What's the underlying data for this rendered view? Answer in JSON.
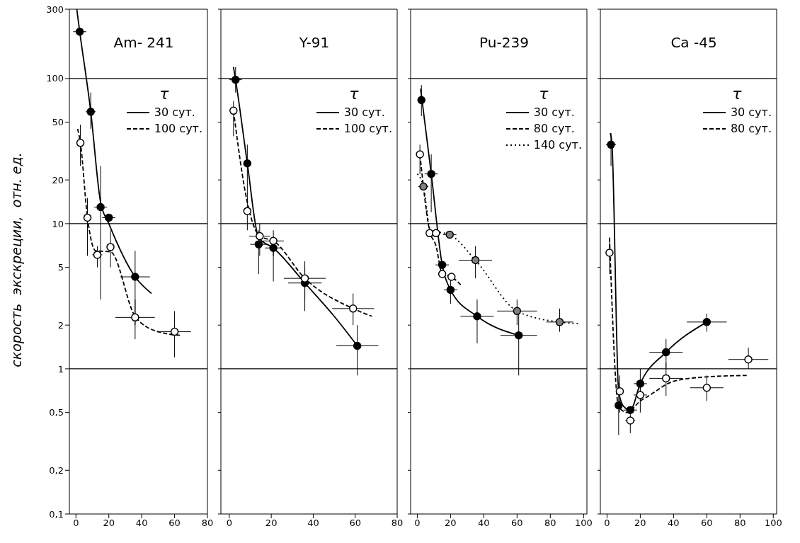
{
  "chart_data": [
    {
      "type": "scatter",
      "title": "Am- 241",
      "ylabel": "скорость  экскреции,  отн. ед.",
      "legend_title": "τ",
      "legend": "top right",
      "log": true,
      "xlim": [
        -4,
        80
      ],
      "xticks": [
        0,
        20,
        40,
        60,
        80
      ],
      "ylim": [
        0.1,
        300
      ],
      "yticks": [
        {
          "value": 0.1,
          "label": "0,1"
        },
        {
          "value": 0.2,
          "label": "0,2"
        },
        {
          "value": 0.5,
          "label": "0,5"
        },
        1,
        2,
        5,
        10,
        20,
        50,
        100,
        300
      ],
      "ref_lines": [
        {
          "axis": "y",
          "value": 1
        },
        {
          "axis": "y",
          "value": 10
        },
        {
          "axis": "y",
          "value": 100
        }
      ],
      "series": [
        {
          "type": "line",
          "name": "30 сут.",
          "color": "#000000",
          "line_style": "solid",
          "marker": "none",
          "x": [
            0.5,
            2.3,
            9,
            15,
            20,
            36,
            46
          ],
          "values": [
            300,
            210,
            59,
            14,
            10,
            4.3,
            3.3
          ]
        },
        {
          "type": "line",
          "name": "100 сут.",
          "color": "#000000",
          "line_style": "dashed",
          "marker": "none",
          "x": [
            1,
            2.7,
            7,
            12,
            21,
            36,
            50,
            64
          ],
          "values": [
            45,
            36,
            11,
            6.5,
            6.4,
            2.3,
            1.8,
            1.7
          ]
        },
        {
          "color": "#000000",
          "marker": "circle",
          "x": [
            2.3,
            9,
            15,
            20,
            36
          ],
          "values": [
            210,
            59,
            13,
            11,
            4.3
          ],
          "xerrors": [
            4,
            3,
            4,
            4,
            9
          ],
          "errors": [
            null,
            [
              45,
              80
            ],
            [
              3,
              25
            ],
            null,
            [
              2,
              6.5
            ]
          ]
        },
        {
          "color": "#ffffff",
          "marker": "circle",
          "x": [
            2.7,
            7,
            13,
            21,
            36,
            60
          ],
          "values": [
            36,
            11,
            6.1,
            6.9,
            2.26,
            1.8
          ],
          "xerrors": [
            null,
            null,
            3,
            null,
            12,
            10
          ],
          "errors": [
            [
              25,
              48
            ],
            [
              6,
              15
            ],
            [
              5,
              7
            ],
            [
              5,
              9
            ],
            [
              1.6,
              3
            ],
            [
              1.2,
              2.5
            ]
          ]
        }
      ]
    },
    {
      "type": "scatter",
      "title": "Y-91",
      "legend_title": "τ",
      "legend": "top right",
      "log": true,
      "tick_labels": "x",
      "xlim": [
        -4,
        80
      ],
      "xticks": [
        0,
        20,
        40,
        60,
        80
      ],
      "ylim": [
        0.1,
        300
      ],
      "yticks": [
        {
          "value": 0.1,
          "label": null
        },
        {
          "value": 0.2,
          "label": null
        },
        {
          "value": 0.5,
          "label": null
        },
        {
          "value": 1,
          "label": null
        },
        {
          "value": 2,
          "label": null
        },
        {
          "value": 5,
          "label": null
        },
        {
          "value": 10,
          "label": null
        },
        {
          "value": 20,
          "label": null
        },
        {
          "value": 50,
          "label": null
        },
        {
          "value": 100,
          "label": null
        },
        {
          "value": 300,
          "label": null
        }
      ],
      "ref_lines": [
        {
          "axis": "y",
          "value": 1
        },
        {
          "axis": "y",
          "value": 10
        },
        {
          "axis": "y",
          "value": 100
        }
      ],
      "series": [
        {
          "type": "line",
          "name": "30 сут.",
          "color": "#000000",
          "line_style": "solid",
          "marker": "none",
          "x": [
            2,
            3,
            8.6,
            14,
            21,
            36,
            50,
            61
          ],
          "values": [
            120,
            98,
            26,
            8,
            6.8,
            3.9,
            2.3,
            1.44
          ]
        },
        {
          "type": "line",
          "name": "100 сут.",
          "color": "#000000",
          "line_style": "dashed",
          "marker": "none",
          "x": [
            2,
            8.6,
            14.5,
            21,
            36,
            59,
            68
          ],
          "values": [
            60,
            14,
            8.2,
            7.6,
            4.2,
            2.6,
            2.3
          ]
        },
        {
          "color": "#000000",
          "marker": "circle",
          "x": [
            3,
            8.6,
            14,
            21,
            36,
            61
          ],
          "values": [
            98,
            26,
            7.2,
            6.8,
            3.9,
            1.44
          ],
          "xerrors": [
            3,
            null,
            4,
            4,
            8,
            10
          ],
          "errors": [
            [
              80,
              120
            ],
            [
              14,
              35
            ],
            [
              4.5,
              9
            ],
            [
              4,
              8
            ],
            [
              2.5,
              5
            ],
            [
              0.9,
              2
            ]
          ]
        },
        {
          "color": "#ffffff",
          "marker": "circle",
          "x": [
            2,
            8.6,
            14.5,
            21,
            36,
            59
          ],
          "values": [
            60,
            12.2,
            8.2,
            7.6,
            4.2,
            2.6
          ],
          "xerrors": [
            null,
            null,
            5,
            5,
            10,
            10
          ],
          "errors": [
            [
              40,
              70
            ],
            [
              9,
              15
            ],
            [
              6,
              10
            ],
            [
              6,
              9
            ],
            [
              3,
              5.5
            ],
            [
              2,
              3.3
            ]
          ]
        }
      ]
    },
    {
      "type": "scatter",
      "title": "Pu-239",
      "legend_title": "τ",
      "legend": "top right",
      "log": true,
      "tick_labels": "x",
      "xlim": [
        -4,
        102
      ],
      "xticks": [
        0,
        20,
        40,
        60,
        80,
        100
      ],
      "ylim": [
        0.1,
        300
      ],
      "yticks": [
        {
          "value": 0.1,
          "label": null
        },
        {
          "value": 0.2,
          "label": null
        },
        {
          "value": 0.5,
          "label": null
        },
        {
          "value": 1,
          "label": null
        },
        {
          "value": 2,
          "label": null
        },
        {
          "value": 5,
          "label": null
        },
        {
          "value": 10,
          "label": null
        },
        {
          "value": 20,
          "label": null
        },
        {
          "value": 50,
          "label": null
        },
        {
          "value": 100,
          "label": null
        },
        {
          "value": 300,
          "label": null
        }
      ],
      "ref_lines": [
        {
          "axis": "y",
          "value": 1
        },
        {
          "axis": "y",
          "value": 10
        },
        {
          "axis": "y",
          "value": 100
        }
      ],
      "series": [
        {
          "type": "line",
          "name": "30 сут.",
          "color": "#000000",
          "line_style": "solid",
          "marker": "none",
          "x": [
            2,
            8.4,
            15,
            20,
            36,
            61
          ],
          "values": [
            85,
            22,
            5.2,
            3.5,
            2.3,
            1.7
          ]
        },
        {
          "type": "line",
          "name": "80 сут.",
          "color": "#000000",
          "line_style": "dashed",
          "marker": "none",
          "x": [
            1.6,
            7.4,
            11.3,
            15,
            20.6,
            27
          ],
          "values": [
            30,
            9,
            7,
            4.5,
            4.3,
            3.7
          ]
        },
        {
          "type": "line",
          "name": "140 сут.",
          "color": "#000000",
          "line_style": "dotted",
          "marker": "none",
          "x": [
            0,
            3.7,
            8,
            19.5,
            35,
            60,
            85.6,
            97
          ],
          "values": [
            22,
            18,
            9,
            8.4,
            5.6,
            2.5,
            2.1,
            2.05
          ]
        },
        {
          "color": "#000000",
          "marker": "circle",
          "x": [
            2.5,
            8.4,
            15,
            20,
            36,
            61
          ],
          "values": [
            71,
            22,
            5.2,
            3.5,
            2.3,
            1.7
          ],
          "xerrors": [
            null,
            4,
            4,
            4,
            10,
            11
          ],
          "errors": [
            [
              55,
              90
            ],
            [
              12,
              30
            ],
            null,
            [
              2.8,
              4.5
            ],
            [
              1.5,
              3
            ],
            [
              0.9,
              2.5
            ]
          ]
        },
        {
          "color": "#ffffff",
          "marker": "circle",
          "x": [
            1.6,
            7.4,
            11.3,
            15,
            20.6
          ],
          "values": [
            30,
            8.6,
            8.6,
            4.5,
            4.3
          ],
          "errors": [
            [
              22,
              35
            ],
            null,
            null,
            null,
            null
          ]
        },
        {
          "color": "#808080",
          "marker": "circle",
          "x": [
            3.7,
            19.5,
            35,
            60,
            85.6
          ],
          "values": [
            18,
            8.4,
            5.6,
            2.5,
            2.1
          ],
          "xerrors": [
            3,
            4,
            10,
            12,
            8
          ],
          "errors": [
            null,
            null,
            [
              4.2,
              7
            ],
            [
              2,
              3
            ],
            [
              1.8,
              2.6
            ]
          ]
        }
      ]
    },
    {
      "type": "scatter",
      "title": "Ca -45",
      "legend_title": "τ",
      "legend": "top right",
      "log": true,
      "tick_labels": "x",
      "xlim": [
        -4,
        102
      ],
      "xticks": [
        0,
        20,
        40,
        60,
        80,
        100
      ],
      "ylim": [
        0.1,
        300
      ],
      "yticks": [
        {
          "value": 0.1,
          "label": null
        },
        {
          "value": 0.2,
          "label": null
        },
        {
          "value": 0.5,
          "label": null
        },
        {
          "value": 1,
          "label": null
        },
        {
          "value": 2,
          "label": null
        },
        {
          "value": 5,
          "label": null
        },
        {
          "value": 10,
          "label": null
        },
        {
          "value": 20,
          "label": null
        },
        {
          "value": 50,
          "label": null
        },
        {
          "value": 100,
          "label": null
        },
        {
          "value": 300,
          "label": null
        }
      ],
      "ref_lines": [
        {
          "axis": "y",
          "value": 1
        },
        {
          "axis": "y",
          "value": 10
        },
        {
          "axis": "y",
          "value": 100
        }
      ],
      "series": [
        {
          "type": "line",
          "name": "30 сут.",
          "color": "#000000",
          "line_style": "solid",
          "marker": "none",
          "x": [
            2,
            3,
            7,
            10,
            14,
            20,
            35.5,
            60
          ],
          "values": [
            42,
            35,
            0.7,
            0.55,
            0.52,
            0.79,
            1.3,
            2.1
          ]
        },
        {
          "type": "line",
          "name": "80 сут.",
          "color": "#000000",
          "line_style": "dashed",
          "marker": "none",
          "x": [
            1.5,
            7,
            12,
            20,
            25,
            40,
            60,
            84
          ],
          "values": [
            8,
            0.55,
            0.5,
            0.6,
            0.65,
            0.82,
            0.88,
            0.9
          ]
        },
        {
          "color": "#000000",
          "marker": "circle",
          "x": [
            2.4,
            7,
            14,
            20,
            35.5,
            60
          ],
          "values": [
            35,
            0.56,
            0.52,
            0.79,
            1.3,
            2.1
          ],
          "xerrors": [
            3,
            null,
            4,
            4,
            10,
            12
          ],
          "errors": [
            [
              25,
              42
            ],
            [
              0.35,
              0.8
            ],
            null,
            [
              0.6,
              1
            ],
            [
              1,
              1.6
            ],
            [
              1.8,
              2.4
            ]
          ]
        },
        {
          "color": "#ffffff",
          "marker": "circle",
          "x": [
            1.5,
            7.7,
            14,
            20,
            35.5,
            60,
            85
          ],
          "values": [
            6.3,
            0.7,
            0.44,
            0.66,
            0.86,
            0.74,
            1.16
          ],
          "xerrors": [
            null,
            null,
            3,
            4,
            10,
            10,
            12
          ],
          "errors": [
            [
              4.5,
              8
            ],
            [
              0.5,
              0.9
            ],
            [
              0.36,
              0.5
            ],
            [
              0.5,
              0.8
            ],
            [
              0.65,
              1.1
            ],
            [
              0.6,
              0.9
            ],
            [
              1,
              1.4
            ]
          ]
        }
      ]
    }
  ]
}
